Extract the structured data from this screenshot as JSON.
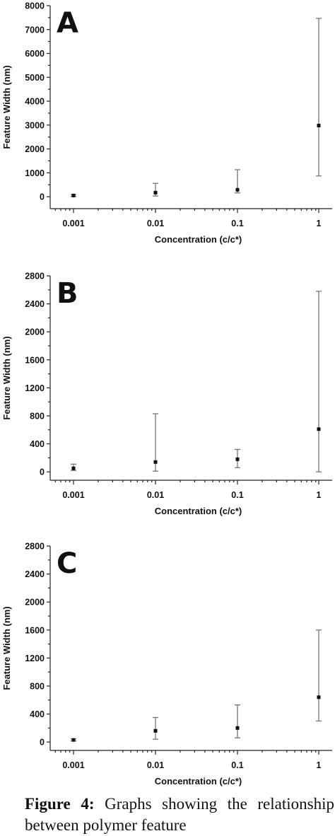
{
  "chart_data": [
    {
      "type": "scatter",
      "panel_label": "A",
      "xlabel": "Concentration (c/c*)",
      "ylabel": "Feature Width (nm)",
      "x_scale": "log",
      "x_tick_labels": [
        "0.001",
        "0.01",
        "0.1",
        "1"
      ],
      "y_ticks": [
        0,
        1000,
        2000,
        3000,
        4000,
        5000,
        6000,
        7000,
        8000
      ],
      "ylim": [
        -500,
        8000
      ],
      "points": [
        {
          "x": 0.001,
          "y": 50,
          "err_low": 10,
          "err_high": 90
        },
        {
          "x": 0.01,
          "y": 170,
          "err_low": 30,
          "err_high": 560
        },
        {
          "x": 0.1,
          "y": 290,
          "err_low": 160,
          "err_high": 1130
        },
        {
          "x": 1,
          "y": 2980,
          "err_low": 870,
          "err_high": 7470
        }
      ],
      "grid": false
    },
    {
      "type": "scatter",
      "panel_label": "B",
      "xlabel": "Concentration (c/c*)",
      "ylabel": "Feature Width (nm)",
      "x_scale": "log",
      "x_tick_labels": [
        "0.001",
        "0.01",
        "0.1",
        "1"
      ],
      "y_ticks": [
        0,
        400,
        800,
        1200,
        1600,
        2000,
        2400,
        2800
      ],
      "ylim": [
        -120,
        2800
      ],
      "points": [
        {
          "x": 0.001,
          "y": 50,
          "err_low": 20,
          "err_high": 110
        },
        {
          "x": 0.01,
          "y": 140,
          "err_low": 10,
          "err_high": 830
        },
        {
          "x": 0.1,
          "y": 180,
          "err_low": 60,
          "err_high": 320
        },
        {
          "x": 1,
          "y": 610,
          "err_low": 0,
          "err_high": 2580
        }
      ],
      "grid": false
    },
    {
      "type": "scatter",
      "panel_label": "C",
      "xlabel": "Concentration (c/c*)",
      "ylabel": "Feature Width (nm)",
      "x_scale": "log",
      "x_tick_labels": [
        "0.001",
        "0.01",
        "0.1",
        "1"
      ],
      "y_ticks": [
        0,
        400,
        800,
        1200,
        1600,
        2000,
        2400,
        2800
      ],
      "ylim": [
        -120,
        2800
      ],
      "points": [
        {
          "x": 0.001,
          "y": 30,
          "err_low": 15,
          "err_high": 45
        },
        {
          "x": 0.01,
          "y": 160,
          "err_low": 40,
          "err_high": 350
        },
        {
          "x": 0.1,
          "y": 200,
          "err_low": 60,
          "err_high": 530
        },
        {
          "x": 1,
          "y": 640,
          "err_low": 300,
          "err_high": 1600
        }
      ],
      "grid": false
    }
  ],
  "caption": {
    "label": "Figure 4:",
    "text": " Graphs showing the relationship between polymer feature"
  }
}
